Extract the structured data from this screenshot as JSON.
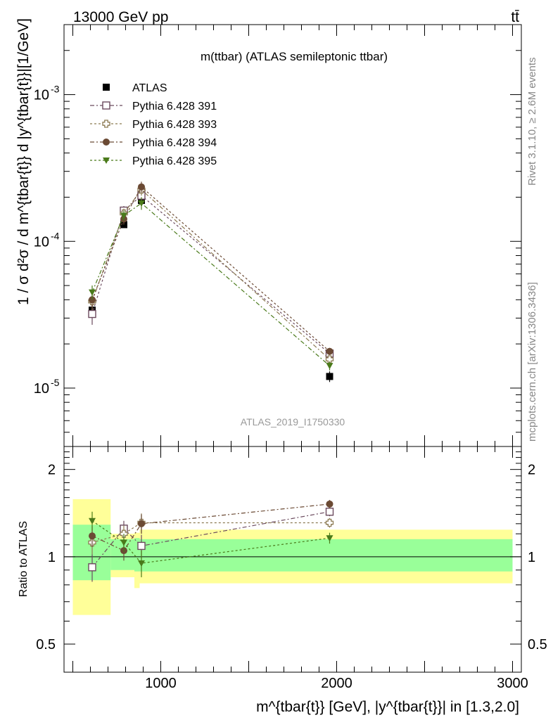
{
  "header": {
    "left": "13000 GeV pp",
    "right": "tt̄"
  },
  "side_labels": {
    "rivet": "Rivet 3.1.10, ≥ 2.6M events",
    "mcplots": "mcplots.cern.ch [arXiv:1306.3436]"
  },
  "chart_data": [
    {
      "type": "scatter",
      "panel": "main",
      "title": "m(ttbar) (ATLAS semileptonic ttbar)",
      "watermark": "ATLAS_2019_I1750330",
      "ylabel": "1 / σ d²σ / d m^{tbar{t}} d |y^{tbar{t}}|[1/GeV]",
      "xlim": [
        450,
        3050
      ],
      "ylim": [
        4e-06,
        0.003
      ],
      "yscale": "log",
      "y_ticks": [
        {
          "value": 1e-05,
          "label": "10^-5"
        },
        {
          "value": 0.0001,
          "label": "10^-4"
        },
        {
          "value": 0.001,
          "label": "10^-3"
        }
      ],
      "legend_position": "top-left",
      "x": [
        610,
        790,
        890,
        1960
      ],
      "series": [
        {
          "name": "ATLAS",
          "color": "#000000",
          "marker": "filled-square",
          "values": [
            3.4e-05,
            0.00013,
            0.00019,
            1.2e-05
          ],
          "errors": [
            3e-06,
            6e-06,
            6e-06,
            1e-06
          ]
        },
        {
          "name": "Pythia 6.428 391",
          "color": "#6b4a5e",
          "marker": "open-square",
          "values": [
            3.2e-05,
            0.000162,
            0.000205,
            1.72e-05
          ],
          "errors": [
            5e-06,
            1.2e-05,
            1.8e-05,
            1e-06
          ]
        },
        {
          "name": "Pythia 6.428 393",
          "color": "#8c7a52",
          "marker": "open-cross",
          "values": [
            3.9e-05,
            0.000155,
            0.000225,
            1.57e-05
          ],
          "errors": [
            5e-06,
            1.2e-05,
            2e-05,
            1e-06
          ]
        },
        {
          "name": "Pythia 6.428 394",
          "color": "#6b4a34",
          "marker": "filled-circle",
          "values": [
            4e-05,
            0.000142,
            0.000235,
            1.78e-05
          ],
          "errors": [
            5e-06,
            1.2e-05,
            2e-05,
            1e-06
          ]
        },
        {
          "name": "Pythia 6.428 395",
          "color": "#4a7a1a",
          "marker": "filled-triangle-down",
          "values": [
            4.5e-05,
            0.00015,
            0.000182,
            1.42e-05
          ],
          "errors": [
            5e-06,
            1.2e-05,
            1.8e-05,
            1e-06
          ]
        }
      ]
    },
    {
      "type": "scatter",
      "panel": "ratio",
      "ylabel": "Ratio to ATLAS",
      "xlabel": "m^{tbar{t}} [GeV], |y^{tbar{t}}| in [1.3,2.0]",
      "xlim": [
        450,
        3050
      ],
      "ylim": [
        0.4,
        2.4
      ],
      "yscale": "log",
      "x_ticks": [
        1000,
        2000,
        3000
      ],
      "y_ticks": [
        {
          "value": 0.5,
          "label": "0.5"
        },
        {
          "value": 1,
          "label": "1"
        },
        {
          "value": 2,
          "label": "2"
        }
      ],
      "reference_line": 1,
      "bands": [
        {
          "x": [
            500,
            715
          ],
          "green": [
            0.83,
            1.29
          ],
          "yellow": [
            0.63,
            1.58
          ]
        },
        {
          "x": [
            715,
            850
          ],
          "green": [
            0.9,
            1.15
          ],
          "yellow": [
            0.85,
            1.2
          ]
        },
        {
          "x": [
            850,
            880
          ],
          "green": [
            0.89,
            1.16
          ],
          "yellow": [
            0.78,
            1.21
          ]
        },
        {
          "x": [
            880,
            3000
          ],
          "green": [
            0.89,
            1.15
          ],
          "yellow": [
            0.81,
            1.24
          ]
        }
      ],
      "x": [
        610,
        790,
        890,
        1960
      ],
      "series": [
        {
          "name": "Pythia 6.428 391",
          "color": "#6b4a5e",
          "marker": "open-square",
          "values": [
            0.92,
            1.25,
            1.09,
            1.43
          ],
          "errors": [
            0.1,
            0.08,
            0.1,
            0.05
          ]
        },
        {
          "name": "Pythia 6.428 393",
          "color": "#8c7a52",
          "marker": "open-cross",
          "values": [
            1.12,
            1.2,
            1.31,
            1.31
          ],
          "errors": [
            0.1,
            0.08,
            0.1,
            0.05
          ]
        },
        {
          "name": "Pythia 6.428 394",
          "color": "#6b4a34",
          "marker": "filled-circle",
          "values": [
            1.18,
            1.05,
            1.3,
            1.52
          ],
          "errors": [
            0.1,
            0.08,
            0.1,
            0.05
          ]
        },
        {
          "name": "Pythia 6.428 395",
          "color": "#4a7a1a",
          "marker": "filled-triangle-down",
          "values": [
            1.33,
            1.12,
            0.95,
            1.16
          ],
          "errors": [
            0.1,
            0.08,
            0.1,
            0.05
          ]
        }
      ]
    }
  ]
}
